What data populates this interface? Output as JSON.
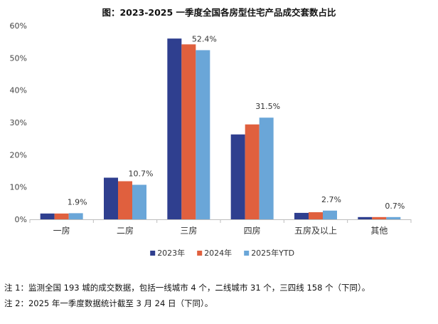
{
  "chart_data": {
    "type": "bar",
    "title": "图：2023-2025 一季度全国各房型住宅产品成交套数占比",
    "categories": [
      "一房",
      "二房",
      "三房",
      "四房",
      "五房及以上",
      "其他"
    ],
    "series": [
      {
        "name": "2023年",
        "color": "#2f3f8f",
        "values": [
          1.8,
          12.9,
          56.0,
          26.3,
          2.0,
          0.7
        ]
      },
      {
        "name": "2024年",
        "color": "#e0603e",
        "values": [
          1.8,
          11.8,
          54.2,
          29.4,
          2.2,
          0.7
        ]
      },
      {
        "name": "2025年YTD",
        "color": "#6aa6d8",
        "values": [
          1.9,
          10.7,
          52.4,
          31.5,
          2.7,
          0.7
        ]
      }
    ],
    "data_labels": [
      "1.9%",
      "10.7%",
      "52.4%",
      "31.5%",
      "2.7%",
      "0.7%"
    ],
    "data_label_series": "2025年YTD",
    "y_ticks": [
      "0%",
      "10%",
      "20%",
      "30%",
      "40%",
      "50%",
      "60%"
    ],
    "ylim": [
      0,
      60
    ],
    "grid": false,
    "legend_position": "bottom"
  },
  "notes": [
    "注 1：监测全国 193 城的成交数据，包括一线城市 4 个，二线城市 31 个，三四线 158 个（下同）。",
    "注 2：2025 年一季度数据统计截至 3 月 24 日（下同）。"
  ]
}
